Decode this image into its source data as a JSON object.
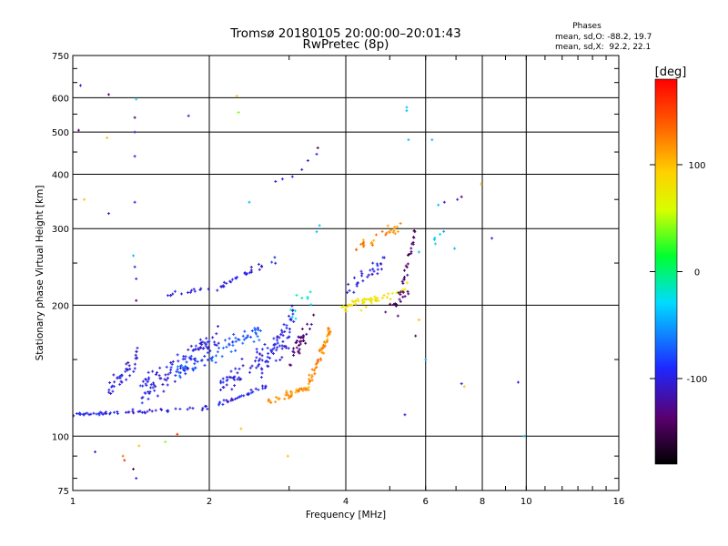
{
  "chart_data": {
    "type": "scatter",
    "title": "Tromsø 20180105 20:00:00–20:01:43",
    "subtitle": "RwPretec (8p)",
    "xlabel": "Frequency [MHz]",
    "ylabel": "Stationary phase Virtual Height [km]",
    "x_scale": "log",
    "y_scale": "log",
    "xlim": [
      1,
      16
    ],
    "ylim": [
      75,
      750
    ],
    "x_ticks": [
      1,
      2,
      4,
      6,
      8,
      10,
      16
    ],
    "x_tick_labels": [
      "1",
      "2",
      "4",
      "6",
      "8",
      "10",
      "16"
    ],
    "y_ticks": [
      75,
      100,
      200,
      300,
      400,
      500,
      600,
      750
    ],
    "y_tick_labels": [
      "75",
      "100",
      "200",
      "300",
      "400",
      "500",
      "600",
      "750"
    ],
    "grid": true,
    "phase_legend": {
      "title": "Phases",
      "line_o": "mean, sd,O: -88.2, 19.7",
      "line_x": "mean, sd,X:  92.2, 22.1"
    },
    "colorbar": {
      "label": "[deg]",
      "min": -180,
      "max": 180,
      "tick_values": [
        100,
        0,
        -100
      ],
      "tick_labels": [
        "100",
        "0",
        "-100"
      ]
    },
    "series": [
      {
        "segments": [
          {
            "f0": 1.0,
            "f1": 1.95,
            "h0": 112,
            "h1": 116,
            "phase": -100,
            "n": 55,
            "s": 0.015
          },
          {
            "f0": 1.95,
            "f1": 2.7,
            "h0": 116,
            "h1": 130,
            "phase": -100,
            "n": 35,
            "s": 0.02
          },
          {
            "f0": 2.7,
            "f1": 3.3,
            "h0": 120,
            "h1": 130,
            "phase": 120,
            "n": 40,
            "s": 0.03
          },
          {
            "f0": 3.3,
            "f1": 3.7,
            "h0": 130,
            "h1": 175,
            "phase": 120,
            "n": 55,
            "s": 0.05
          },
          {
            "f0": 1.2,
            "f1": 1.4,
            "h0": 125,
            "h1": 155,
            "phase": -100,
            "n": 40,
            "s": 0.08
          },
          {
            "f0": 1.4,
            "f1": 2.1,
            "h0": 125,
            "h1": 170,
            "phase": -100,
            "n": 110,
            "s": 0.1
          },
          {
            "f0": 1.7,
            "f1": 2.6,
            "h0": 140,
            "h1": 175,
            "phase": -75,
            "n": 70,
            "s": 0.08
          },
          {
            "f0": 2.1,
            "f1": 3.0,
            "h0": 130,
            "h1": 165,
            "phase": -100,
            "n": 70,
            "s": 0.09
          },
          {
            "f0": 2.6,
            "f1": 3.1,
            "h0": 140,
            "h1": 195,
            "phase": -100,
            "n": 40,
            "s": 0.07
          },
          {
            "f0": 3.0,
            "f1": 3.4,
            "h0": 150,
            "h1": 185,
            "phase": -140,
            "n": 35,
            "s": 0.08
          },
          {
            "f0": 1.6,
            "f1": 2.0,
            "h0": 210,
            "h1": 220,
            "phase": -100,
            "n": 14,
            "s": 0.02
          },
          {
            "f0": 2.0,
            "f1": 2.8,
            "h0": 215,
            "h1": 255,
            "phase": -100,
            "n": 30,
            "s": 0.03
          },
          {
            "f0": 3.9,
            "f1": 4.3,
            "h0": 195,
            "h1": 205,
            "phase": 80,
            "n": 18,
            "s": 0.03
          },
          {
            "f0": 4.3,
            "f1": 5.5,
            "h0": 200,
            "h1": 220,
            "phase": 80,
            "n": 35,
            "s": 0.04
          },
          {
            "f0": 4.2,
            "f1": 5.3,
            "h0": 270,
            "h1": 305,
            "phase": 120,
            "n": 30,
            "s": 0.04
          },
          {
            "f0": 4.0,
            "f1": 5.0,
            "h0": 215,
            "h1": 255,
            "phase": -100,
            "n": 30,
            "s": 0.07
          },
          {
            "f0": 5.2,
            "f1": 5.7,
            "h0": 200,
            "h1": 300,
            "phase": -140,
            "n": 30,
            "s": 0.08
          },
          {
            "f0": 4.8,
            "f1": 5.6,
            "h0": 195,
            "h1": 215,
            "phase": -140,
            "n": 12,
            "s": 0.05
          },
          {
            "f0": 3.0,
            "f1": 3.4,
            "h0": 190,
            "h1": 210,
            "phase": -20,
            "n": 10,
            "s": 0.08
          },
          {
            "f0": 6.2,
            "f1": 6.6,
            "h0": 280,
            "h1": 295,
            "phase": -40,
            "n": 5,
            "s": 0.03
          }
        ],
        "points": [
          [
            1.04,
            640,
            -100
          ],
          [
            1.03,
            505,
            -140
          ],
          [
            1.06,
            350,
            100
          ],
          [
            1.2,
            610,
            -140
          ],
          [
            1.19,
            485,
            100
          ],
          [
            1.2,
            325,
            -100
          ],
          [
            1.38,
            595,
            -20
          ],
          [
            1.37,
            540,
            -140
          ],
          [
            1.37,
            500,
            -100
          ],
          [
            1.37,
            440,
            -100
          ],
          [
            1.37,
            345,
            -100
          ],
          [
            1.36,
            260,
            -40
          ],
          [
            1.37,
            245,
            -100
          ],
          [
            1.38,
            230,
            -100
          ],
          [
            1.38,
            205,
            -140
          ],
          [
            1.8,
            545,
            -100
          ],
          [
            2.3,
            605,
            100
          ],
          [
            2.32,
            555,
            40
          ],
          [
            2.45,
            345,
            -40
          ],
          [
            2.8,
            385,
            -100
          ],
          [
            2.9,
            390,
            -100
          ],
          [
            3.05,
            395,
            -100
          ],
          [
            3.2,
            410,
            -100
          ],
          [
            3.3,
            430,
            -100
          ],
          [
            3.45,
            445,
            -100
          ],
          [
            3.47,
            460,
            -140
          ],
          [
            3.45,
            295,
            -40
          ],
          [
            3.5,
            305,
            -40
          ],
          [
            5.45,
            570,
            -40
          ],
          [
            5.45,
            560,
            -40
          ],
          [
            5.5,
            480,
            -40
          ],
          [
            6.2,
            480,
            -40
          ],
          [
            6.4,
            340,
            -40
          ],
          [
            6.6,
            345,
            -100
          ],
          [
            7.05,
            350,
            -100
          ],
          [
            7.2,
            355,
            -140
          ],
          [
            7.95,
            380,
            100
          ],
          [
            8.4,
            285,
            -100
          ],
          [
            6.95,
            270,
            -40
          ],
          [
            5.8,
            265,
            -40
          ],
          [
            5.8,
            185,
            100
          ],
          [
            6.0,
            150,
            -40
          ],
          [
            5.7,
            170,
            -140
          ],
          [
            7.2,
            132,
            -100
          ],
          [
            7.3,
            130,
            100
          ],
          [
            9.6,
            133,
            -100
          ],
          [
            9.9,
            100,
            -40
          ],
          [
            5.4,
            112,
            -100
          ],
          [
            1.12,
            92,
            -100
          ],
          [
            1.29,
            90,
            130
          ],
          [
            1.36,
            84,
            -140
          ],
          [
            1.38,
            80,
            -100
          ],
          [
            1.4,
            95,
            100
          ],
          [
            1.6,
            97,
            40
          ],
          [
            1.7,
            101,
            160
          ],
          [
            2.35,
            104,
            100
          ],
          [
            2.98,
            90,
            100
          ],
          [
            1.3,
            88,
            160
          ]
        ]
      }
    ]
  }
}
